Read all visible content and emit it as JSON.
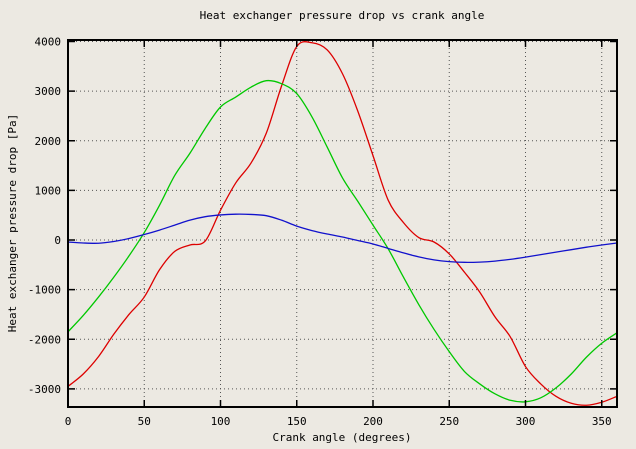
{
  "window": {
    "background": "#ece9e2"
  },
  "colors": {
    "background": "#ece9e2",
    "frame": "#000000",
    "grid": "#555555",
    "text": "#000000"
  },
  "chart_data": {
    "type": "line",
    "title": "Heat exchanger pressure drop vs crank angle",
    "xlabel": "Crank angle (degrees)",
    "ylabel": "Heat exchanger pressure drop [Pa]",
    "xlim": [
      0,
      360
    ],
    "ylim": [
      -3365,
      4030
    ],
    "xticks": [
      0,
      50,
      100,
      150,
      200,
      250,
      300,
      350
    ],
    "yticks": [
      -3000,
      -2000,
      -1000,
      0,
      1000,
      2000,
      3000,
      4000
    ],
    "grid": true,
    "legend": false,
    "x": [
      0,
      10,
      20,
      30,
      40,
      50,
      60,
      70,
      80,
      90,
      100,
      110,
      120,
      130,
      140,
      150,
      160,
      170,
      180,
      190,
      200,
      210,
      220,
      230,
      240,
      250,
      260,
      270,
      280,
      290,
      300,
      310,
      320,
      330,
      340,
      350,
      360
    ],
    "series": [
      {
        "name": "red",
        "color": "#dd0000",
        "values": [
          -2950,
          -2700,
          -2350,
          -1900,
          -1500,
          -1150,
          -600,
          -230,
          -100,
          -20,
          600,
          1150,
          1550,
          2150,
          3100,
          3900,
          3975,
          3830,
          3350,
          2600,
          1700,
          800,
          350,
          50,
          -40,
          -280,
          -650,
          -1050,
          -1550,
          -1950,
          -2550,
          -2900,
          -3150,
          -3290,
          -3330,
          -3270,
          -3150
        ]
      },
      {
        "name": "green",
        "color": "#00c800",
        "values": [
          -1850,
          -1520,
          -1150,
          -750,
          -320,
          150,
          700,
          1300,
          1750,
          2250,
          2680,
          2880,
          3080,
          3210,
          3150,
          2950,
          2480,
          1870,
          1250,
          780,
          300,
          -180,
          -750,
          -1300,
          -1800,
          -2250,
          -2650,
          -2900,
          -3100,
          -3230,
          -3260,
          -3180,
          -2980,
          -2700,
          -2360,
          -2080,
          -1870
        ]
      },
      {
        "name": "blue",
        "color": "#1111cc",
        "values": [
          -40,
          -60,
          -65,
          -30,
          30,
          110,
          200,
          300,
          400,
          470,
          505,
          520,
          515,
          490,
          400,
          280,
          190,
          120,
          60,
          -10,
          -80,
          -170,
          -260,
          -340,
          -400,
          -435,
          -450,
          -445,
          -425,
          -390,
          -345,
          -295,
          -245,
          -195,
          -145,
          -100,
          -60
        ]
      }
    ]
  }
}
